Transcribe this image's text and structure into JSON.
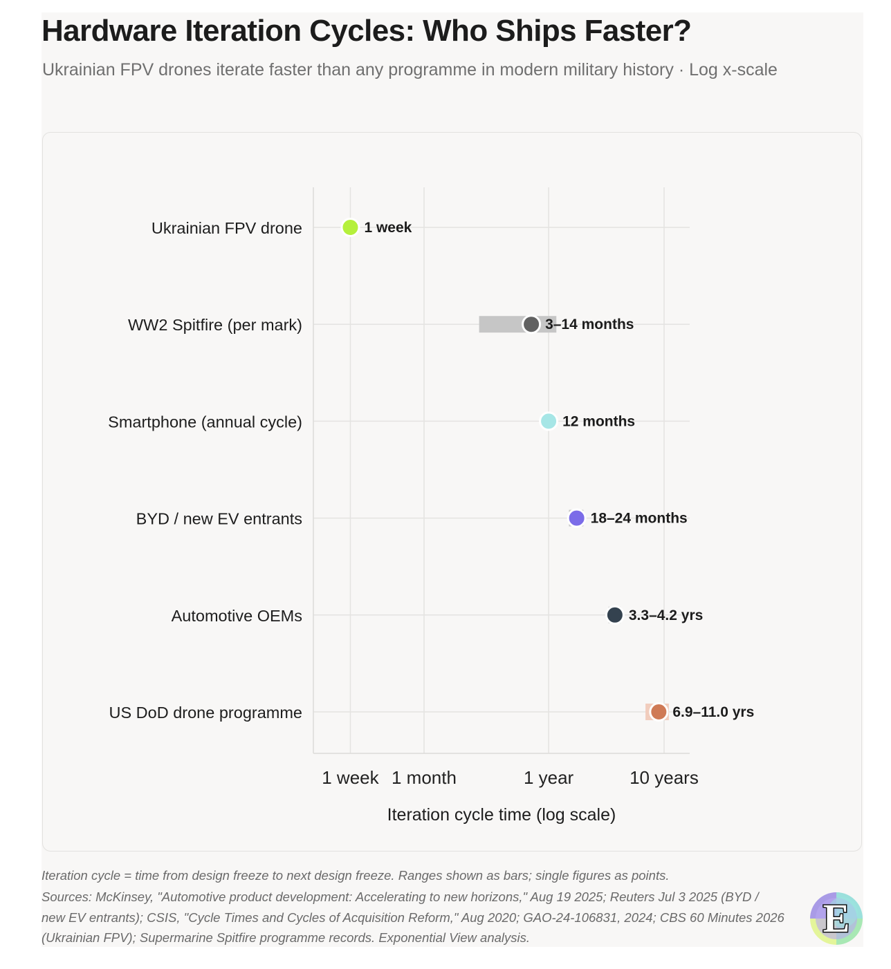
{
  "title": "Hardware Iteration Cycles: Who Ships Faster?",
  "subtitle": "Ukrainian FPV drones iterate faster than any programme in modern military history · Log x-scale",
  "footnote": "Iteration cycle = time from design freeze to next design freeze. Ranges shown as bars; single figures as points.",
  "sources": "Sources: McKinsey, \"Automotive product development: Accelerating to new horizons,\" Aug 19 2025; Reuters Jul 3 2025 (BYD / new EV entrants); CSIS, \"Cycle Times and Cycles of Acquisition Reform,\" Aug 2020; GAO-24-106831, 2024; CBS 60 Minutes 2026 (Ukrainian FPV); Supermarine Spitfire programme records. Exponential View analysis.",
  "logo": {
    "letter": "E",
    "colors": [
      "#a99be6",
      "#9be0dc",
      "#a8e8b4",
      "#e4f59a"
    ]
  },
  "chart_data": {
    "type": "scatter",
    "xscale": "log",
    "xunit": "months",
    "xlabel": "Iteration cycle time (log scale)",
    "xlim": [
      0.11,
      200
    ],
    "xticks": [
      {
        "value": 0.23,
        "label": "1 week"
      },
      {
        "value": 1,
        "label": "1 month"
      },
      {
        "value": 12,
        "label": "1 year"
      },
      {
        "value": 120,
        "label": "10 years"
      }
    ],
    "grid": true,
    "rows": [
      {
        "category": "Ukrainian FPV drone",
        "value": 0.23,
        "range": null,
        "label": "1 week",
        "color": "#b5f03c"
      },
      {
        "category": "WW2 Spitfire (per mark)",
        "value": 8.5,
        "range": [
          3,
          14
        ],
        "label": "3–14 months",
        "color": "#616161"
      },
      {
        "category": "Smartphone (annual cycle)",
        "value": 12,
        "range": null,
        "label": "12 months",
        "color": "#a6e6e6"
      },
      {
        "category": "BYD / new EV entrants",
        "value": 21,
        "range": [
          18,
          24
        ],
        "label": "18–24 months",
        "color": "#7b6ce8"
      },
      {
        "category": "Automotive OEMs",
        "value": 45,
        "range": [
          39.6,
          50.4
        ],
        "label": "3.3–4.2 yrs",
        "color": "#34424f"
      },
      {
        "category": "US DoD drone programme",
        "value": 108,
        "range": [
          82.8,
          132
        ],
        "label": "6.9–11.0 yrs",
        "color": "#cf7a55"
      }
    ],
    "range_color": "#c6c6c6",
    "dod_range_color": "#f1cdbd"
  }
}
